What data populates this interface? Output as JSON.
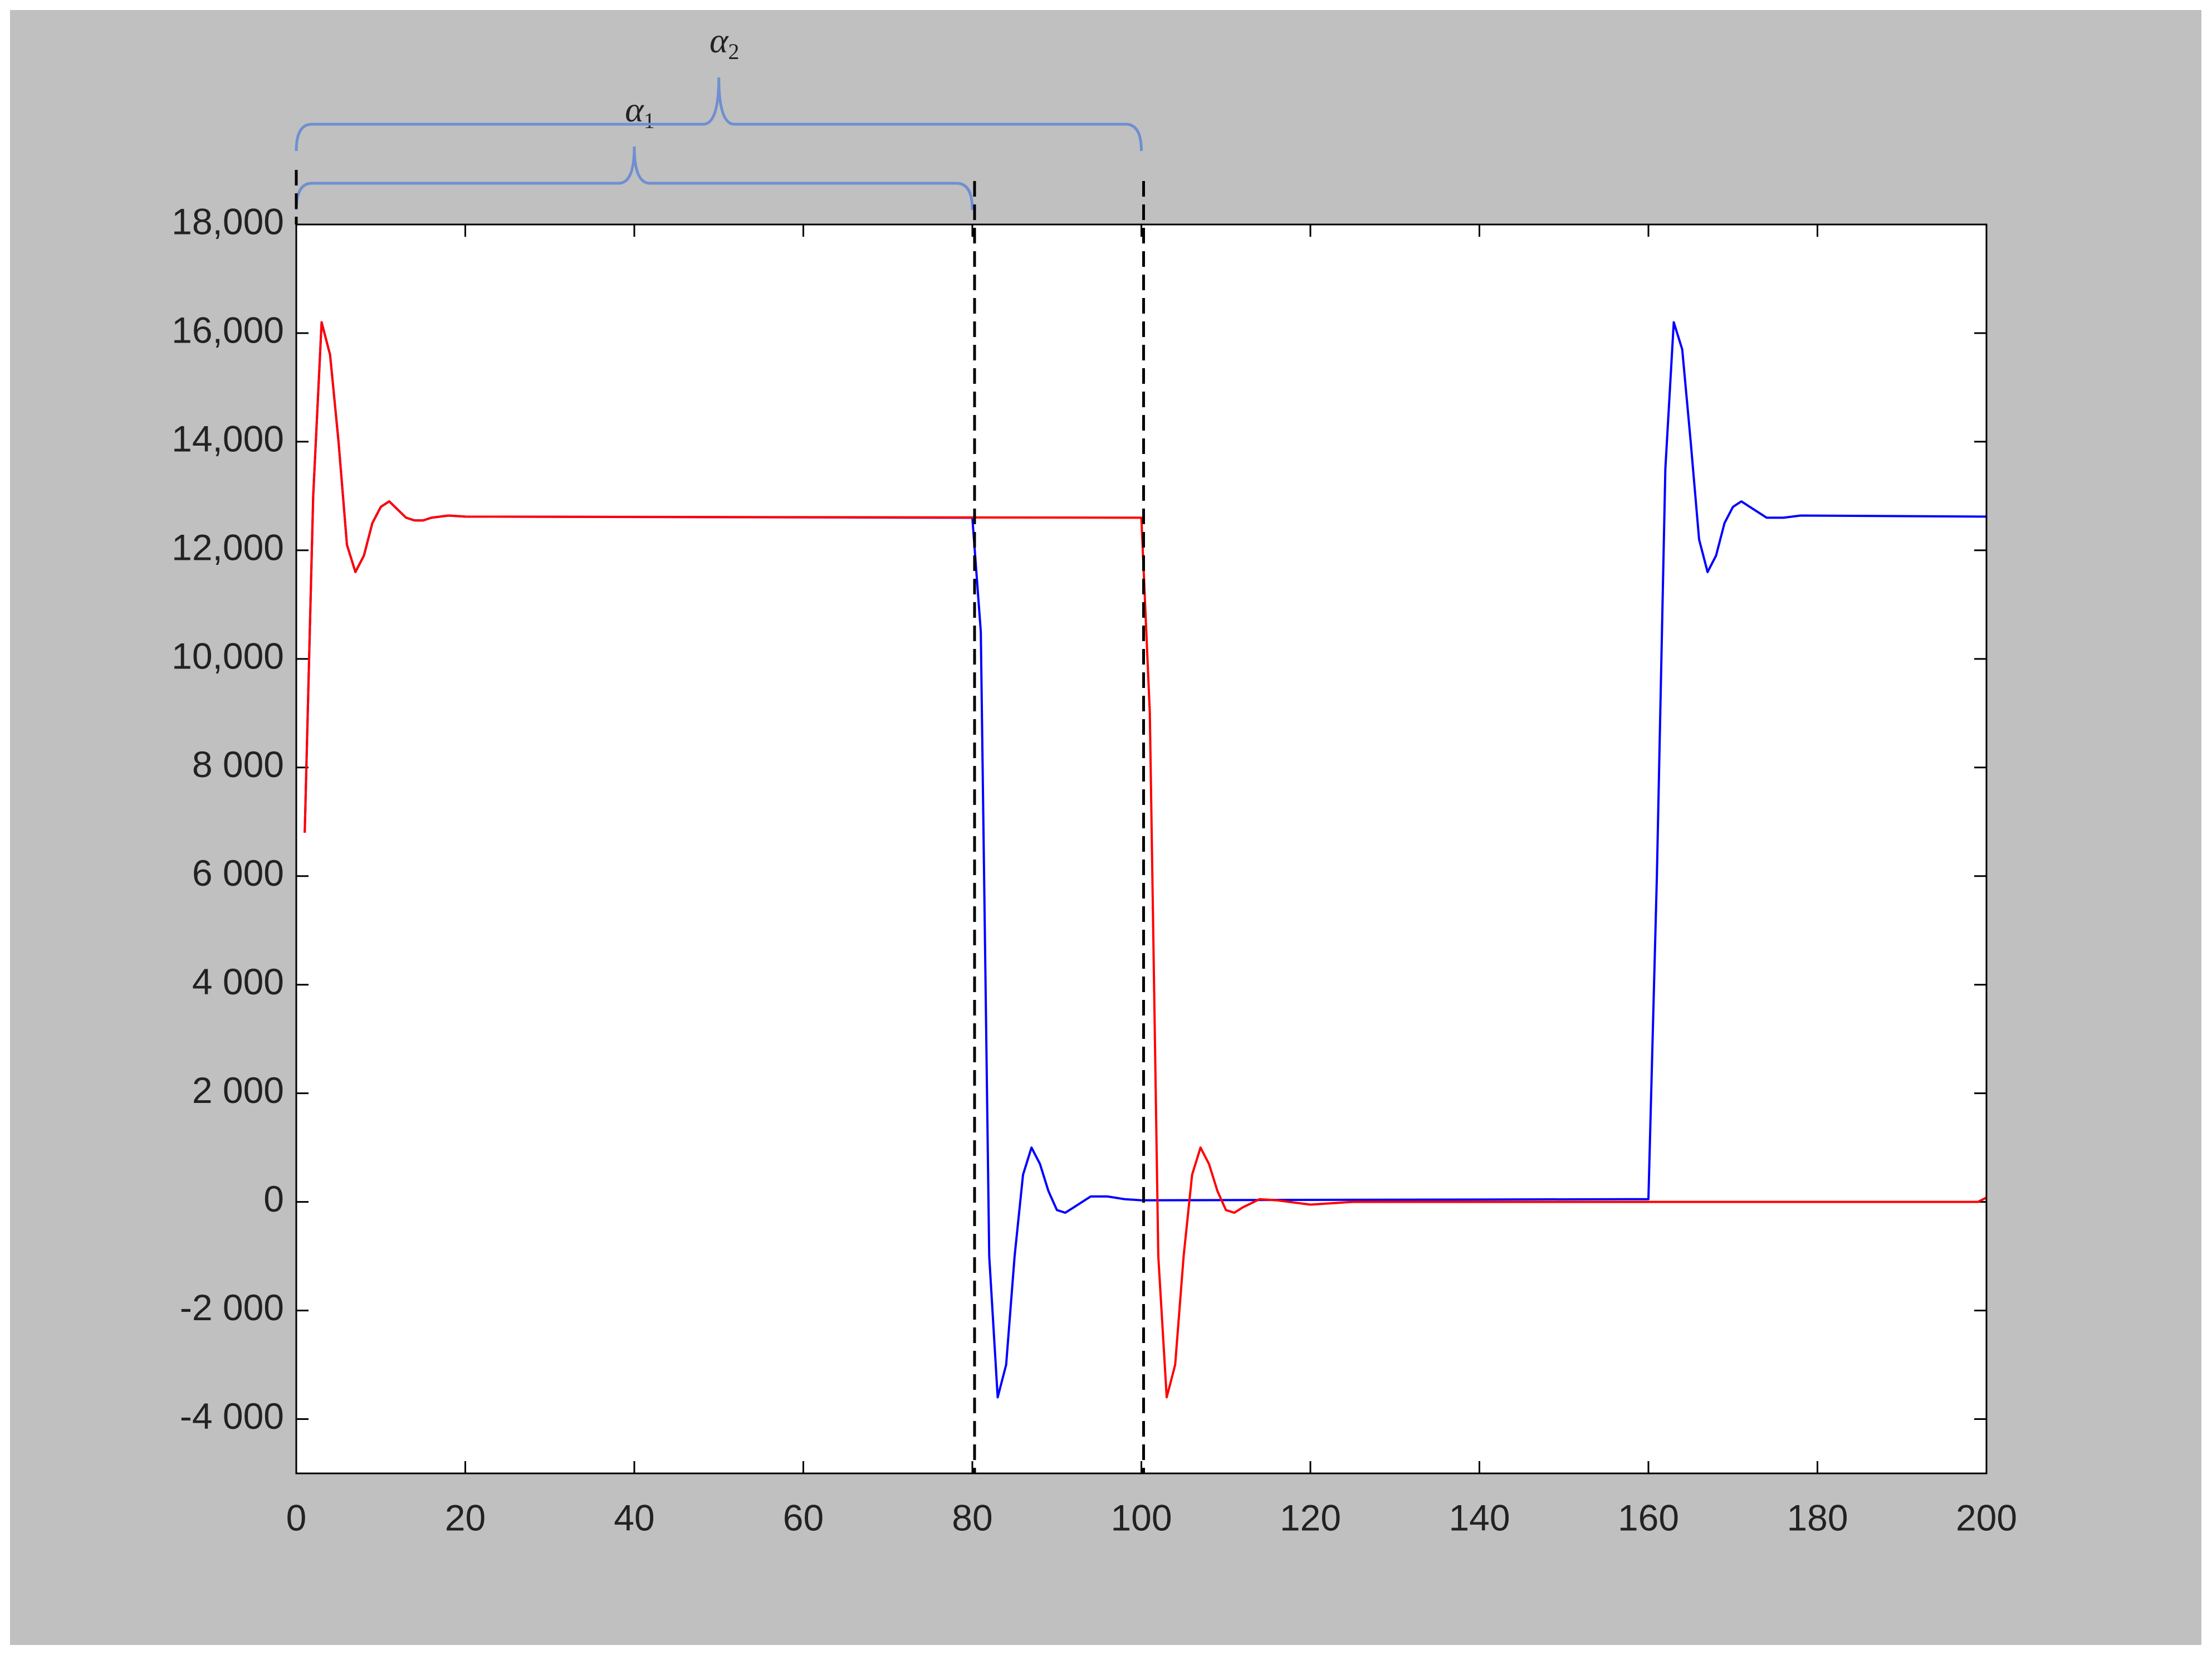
{
  "chart_data": {
    "type": "line",
    "xlim": [
      0,
      200
    ],
    "xticks": [
      0,
      20,
      40,
      60,
      80,
      100,
      120,
      140,
      160,
      180,
      200
    ],
    "ylim": [
      -5000,
      18000
    ],
    "yticks": [
      {
        "value": -4000,
        "label": "-4 000"
      },
      {
        "value": -2000,
        "label": "-2 000"
      },
      0,
      {
        "value": 2000,
        "label": "2 000"
      },
      {
        "value": 4000,
        "label": "4 000"
      },
      {
        "value": 6000,
        "label": "6 000"
      },
      {
        "value": 8000,
        "label": "8 000"
      },
      {
        "value": 10000,
        "label": "10,000"
      },
      {
        "value": 12000,
        "label": "12,000"
      },
      {
        "value": 14000,
        "label": "14,000"
      },
      {
        "value": 16000,
        "label": "16,000"
      },
      {
        "value": 18000,
        "label": "18,000"
      }
    ],
    "series": [
      {
        "color": "#0000ff",
        "x": [
          1,
          2,
          3,
          4,
          5,
          6,
          7,
          8,
          9,
          10,
          11,
          12,
          13,
          14,
          15,
          16,
          18,
          20,
          80,
          81,
          82,
          83,
          84,
          85,
          86,
          87,
          88,
          89,
          90,
          91,
          92,
          94,
          96,
          98,
          100,
          160,
          161,
          162,
          163,
          164,
          165,
          166,
          167,
          168,
          169,
          170,
          171,
          172,
          174,
          176,
          178,
          200
        ],
        "values": [
          6800,
          13000,
          16200,
          15600,
          14000,
          12100,
          11600,
          11900,
          12500,
          12800,
          12900,
          12750,
          12600,
          12550,
          12550,
          12600,
          12640,
          12620,
          12600,
          10500,
          -1000,
          -3600,
          -3000,
          -1000,
          500,
          1000,
          700,
          200,
          -150,
          -200,
          -100,
          100,
          100,
          50,
          30,
          50,
          6000,
          13500,
          16200,
          15700,
          14000,
          12200,
          11600,
          11900,
          12500,
          12800,
          12900,
          12800,
          12600,
          12600,
          12640,
          12620
        ]
      },
      {
        "color": "#ff0000",
        "x": [
          1,
          2,
          3,
          4,
          5,
          6,
          7,
          8,
          9,
          10,
          11,
          12,
          13,
          14,
          15,
          16,
          18,
          20,
          100,
          101,
          102,
          103,
          104,
          105,
          106,
          107,
          108,
          109,
          110,
          111,
          112,
          114,
          116,
          120,
          125,
          199,
          200
        ],
        "values": [
          6800,
          13000,
          16200,
          15600,
          14000,
          12100,
          11600,
          11900,
          12500,
          12800,
          12900,
          12750,
          12600,
          12550,
          12550,
          12600,
          12640,
          12620,
          12600,
          9000,
          -1000,
          -3600,
          -3000,
          -1000,
          500,
          1000,
          700,
          200,
          -150,
          -200,
          -100,
          50,
          30,
          -50,
          0,
          0,
          80
        ]
      }
    ],
    "braces": [
      {
        "symbol": "α",
        "sub": "1",
        "from": 0,
        "to": 80
      },
      {
        "symbol": "α",
        "sub": "2",
        "from": 0,
        "to": 100
      }
    ]
  }
}
